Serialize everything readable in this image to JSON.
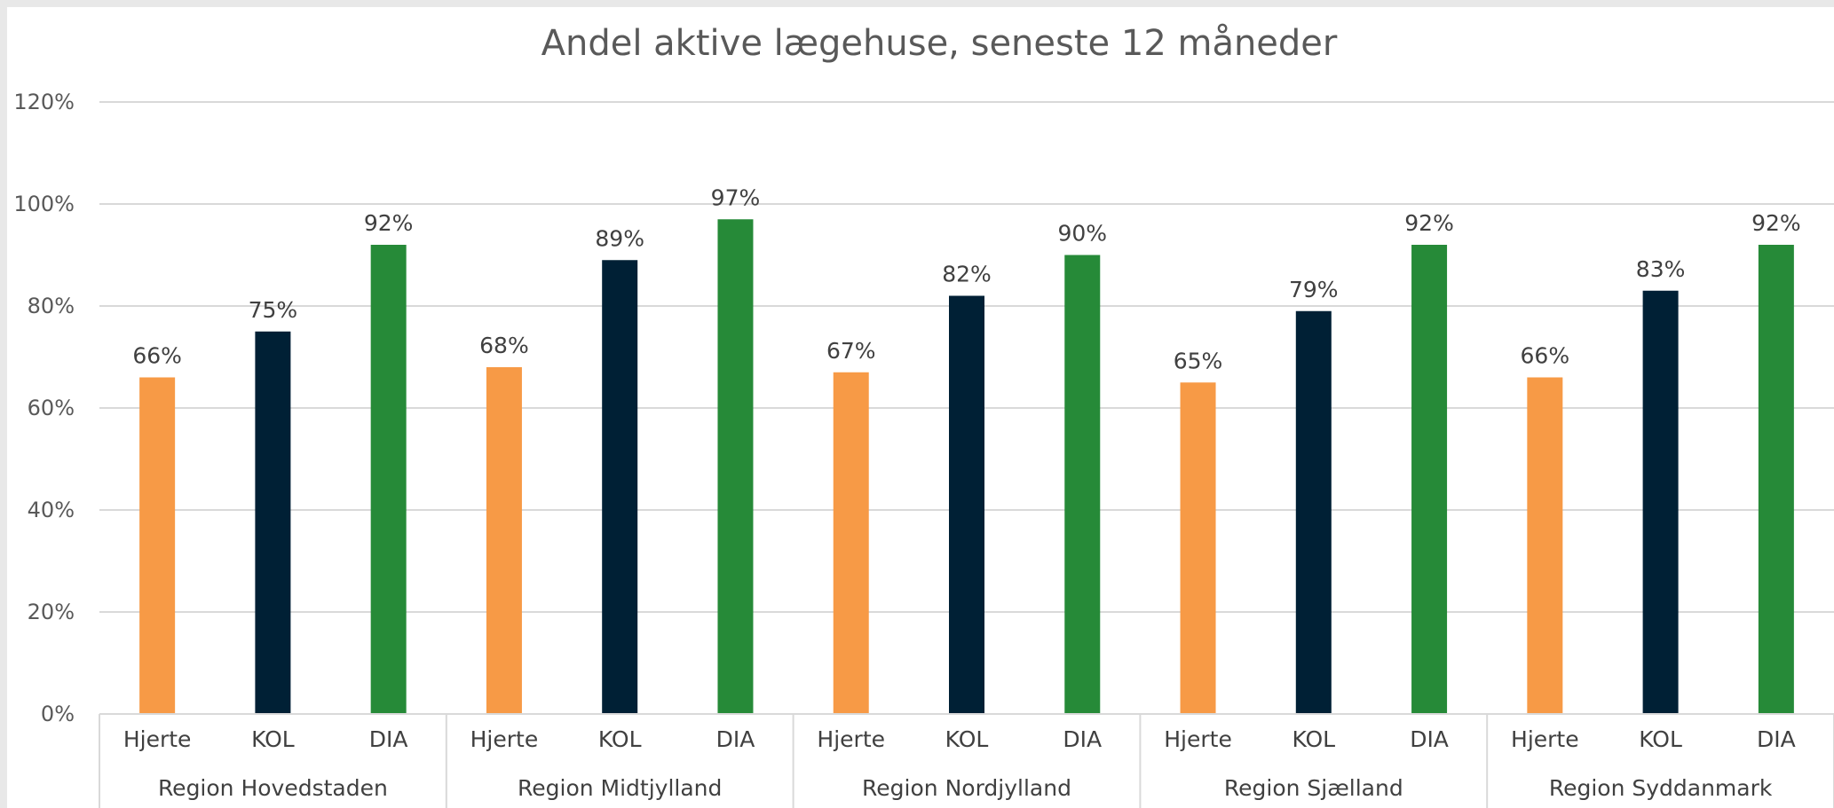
{
  "chart_data": {
    "type": "bar",
    "title": "Andel aktive lægehuse, seneste 12 måneder",
    "xlabel": "",
    "ylabel": "",
    "ylim": [
      0,
      1.2
    ],
    "y_ticks": [
      "0%",
      "20%",
      "40%",
      "60%",
      "80%",
      "100%",
      "120%"
    ],
    "y_tick_values": [
      0,
      0.2,
      0.4,
      0.6,
      0.8,
      1.0,
      1.2
    ],
    "grid": true,
    "categories": [
      "Hjerte",
      "KOL",
      "DIA"
    ],
    "category_colors": {
      "Hjerte": "#f79a46",
      "KOL": "#002035",
      "DIA": "#268a38"
    },
    "groups": [
      {
        "name": "Region Hovedstaden",
        "values": [
          0.66,
          0.75,
          0.92
        ],
        "labels": [
          "66%",
          "75%",
          "92%"
        ]
      },
      {
        "name": "Region Midtjylland",
        "values": [
          0.68,
          0.89,
          0.97
        ],
        "labels": [
          "68%",
          "89%",
          "97%"
        ]
      },
      {
        "name": "Region Nordjylland",
        "values": [
          0.67,
          0.82,
          0.9
        ],
        "labels": [
          "67%",
          "82%",
          "90%"
        ]
      },
      {
        "name": "Region Sjælland",
        "values": [
          0.65,
          0.79,
          0.92
        ],
        "labels": [
          "65%",
          "79%",
          "92%"
        ]
      },
      {
        "name": "Region Syddanmark",
        "values": [
          0.66,
          0.83,
          0.92
        ],
        "labels": [
          "66%",
          "83%",
          "92%"
        ]
      }
    ]
  },
  "colors": {
    "background": "#e8e8e8",
    "plot_area": "#ffffff",
    "gridline": "#d9d9d9",
    "text": "#595959"
  }
}
